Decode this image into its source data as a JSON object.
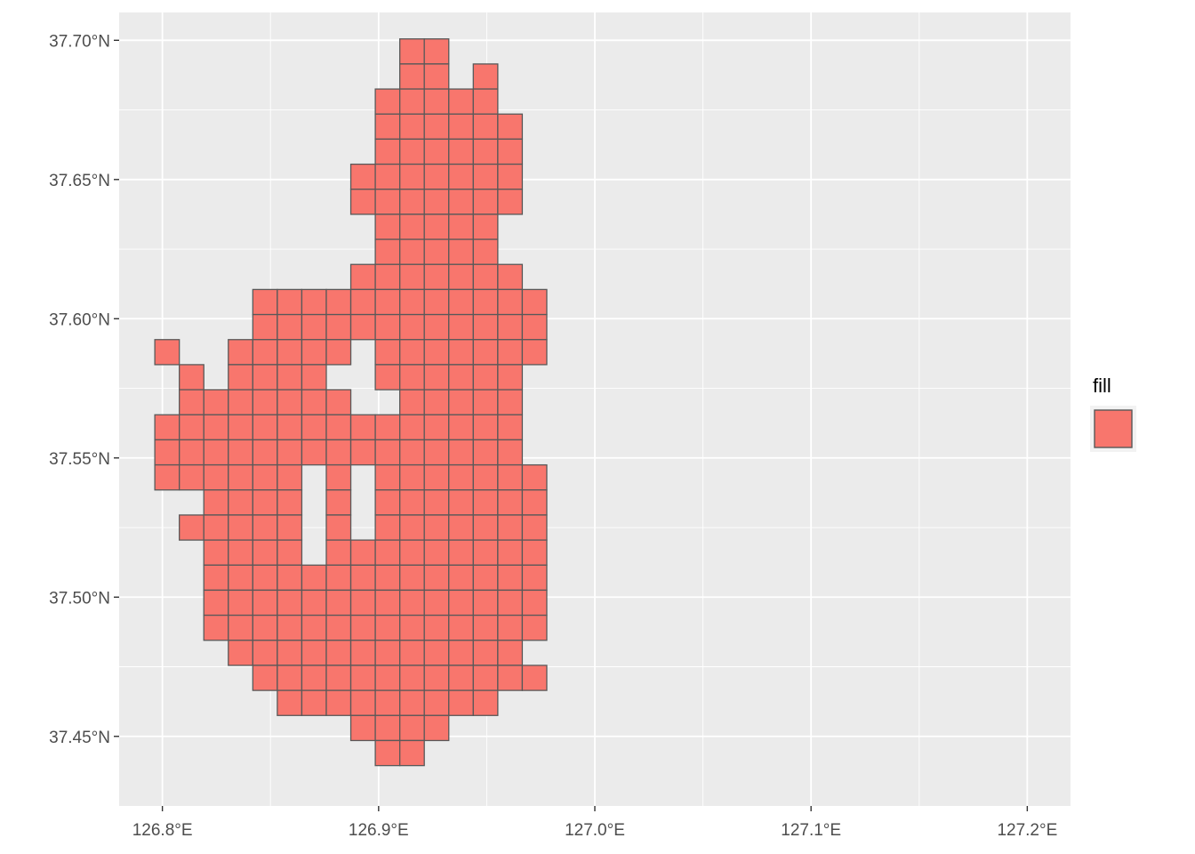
{
  "chart_data": {
    "type": "map",
    "title": "",
    "xlabel": "",
    "ylabel": "",
    "x_range": [
      126.78,
      127.22
    ],
    "y_range": [
      37.425,
      37.71
    ],
    "x_ticks": [
      {
        "value": 126.8,
        "label": "126.8°E"
      },
      {
        "value": 126.9,
        "label": "126.9°E"
      },
      {
        "value": 127.0,
        "label": "127.0°E"
      },
      {
        "value": 127.1,
        "label": "127.1°E"
      },
      {
        "value": 127.2,
        "label": "127.2°E"
      }
    ],
    "y_ticks": [
      {
        "value": 37.45,
        "label": "37.45°N"
      },
      {
        "value": 37.5,
        "label": "37.50°N"
      },
      {
        "value": 37.55,
        "label": "37.55°N"
      },
      {
        "value": 37.6,
        "label": "37.60°N"
      },
      {
        "value": 37.65,
        "label": "37.65°N"
      },
      {
        "value": 37.7,
        "label": "37.70°N"
      }
    ],
    "grid": true,
    "legend": {
      "title": "fill",
      "placement": "right",
      "keys": [
        {
          "label": "",
          "color": "#F8766D"
        }
      ]
    },
    "colors": {
      "panel": "#EBEBEB",
      "grid": "#FFFFFF",
      "fill": "#F8766D",
      "outline": "#595959"
    },
    "grid_cells": {
      "cell_width_deg": 0.01133,
      "cell_height_deg": 0.009,
      "origin_lon": 126.7965,
      "origin_lat": 37.4395,
      "rows": [
        {
          "lat_index": 28,
          "cols": [
            [
              10,
              12
            ]
          ]
        },
        {
          "lat_index": 27,
          "cols": [
            [
              10,
              12
            ],
            [
              13,
              14
            ]
          ]
        },
        {
          "lat_index": 26,
          "cols": [
            [
              9,
              14
            ]
          ]
        },
        {
          "lat_index": 25,
          "cols": [
            [
              9,
              15
            ]
          ]
        },
        {
          "lat_index": 24,
          "cols": [
            [
              9,
              15
            ]
          ]
        },
        {
          "lat_index": 23,
          "cols": [
            [
              8,
              15
            ]
          ]
        },
        {
          "lat_index": 22,
          "cols": [
            [
              8,
              15
            ]
          ]
        },
        {
          "lat_index": 21,
          "cols": [
            [
              9,
              14
            ]
          ]
        },
        {
          "lat_index": 20,
          "cols": [
            [
              9,
              14
            ]
          ]
        },
        {
          "lat_index": 19,
          "cols": [
            [
              8,
              15
            ]
          ]
        },
        {
          "lat_index": 18,
          "cols": [
            [
              4,
              8
            ],
            [
              8,
              16
            ]
          ]
        },
        {
          "lat_index": 17,
          "cols": [
            [
              4,
              8
            ],
            [
              8,
              16
            ]
          ]
        },
        {
          "lat_index": 16,
          "cols": [
            [
              0,
              1
            ],
            [
              3,
              7
            ],
            [
              7,
              8
            ],
            [
              9,
              16
            ]
          ]
        },
        {
          "lat_index": 15,
          "cols": [
            [
              1,
              2
            ],
            [
              3,
              7
            ],
            [
              9,
              15
            ]
          ]
        },
        {
          "lat_index": 14,
          "cols": [
            [
              1,
              8
            ],
            [
              10,
              15
            ]
          ]
        },
        {
          "lat_index": 13,
          "cols": [
            [
              0,
              2
            ],
            [
              1,
              8
            ],
            [
              8,
              15
            ]
          ]
        },
        {
          "lat_index": 12,
          "cols": [
            [
              0,
              8
            ],
            [
              8,
              15
            ]
          ]
        },
        {
          "lat_index": 11,
          "cols": [
            [
              0,
              2
            ],
            [
              2,
              6
            ],
            [
              7,
              8
            ],
            [
              9,
              16
            ]
          ]
        },
        {
          "lat_index": 10,
          "cols": [
            [
              2,
              6
            ],
            [
              7,
              8
            ],
            [
              9,
              16
            ]
          ]
        },
        {
          "lat_index": 9,
          "cols": [
            [
              1,
              6
            ],
            [
              7,
              8
            ],
            [
              9,
              16
            ]
          ]
        },
        {
          "lat_index": 8,
          "cols": [
            [
              2,
              6
            ],
            [
              7,
              16
            ]
          ]
        },
        {
          "lat_index": 7,
          "cols": [
            [
              2,
              7
            ],
            [
              7,
              16
            ]
          ]
        },
        {
          "lat_index": 6,
          "cols": [
            [
              2,
              16
            ]
          ]
        },
        {
          "lat_index": 5,
          "cols": [
            [
              2,
              16
            ]
          ]
        },
        {
          "lat_index": 4,
          "cols": [
            [
              3,
              15
            ]
          ]
        },
        {
          "lat_index": 3,
          "cols": [
            [
              4,
              16
            ]
          ]
        },
        {
          "lat_index": 2,
          "cols": [
            [
              5,
              14
            ]
          ]
        },
        {
          "lat_index": 1,
          "cols": [
            [
              8,
              12
            ]
          ]
        },
        {
          "lat_index": 0,
          "cols": [
            [
              9,
              11
            ]
          ]
        }
      ]
    }
  }
}
